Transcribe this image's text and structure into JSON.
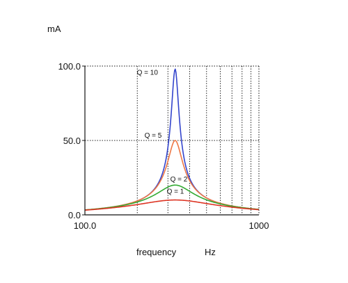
{
  "chart_data": {
    "type": "line",
    "title": "",
    "xlabel": "frequency",
    "xunit": "Hz",
    "ylabel": "mA",
    "x_scale": "log",
    "xlim": [
      100,
      1000
    ],
    "ylim": [
      0,
      100
    ],
    "x_tick_labels": [
      {
        "value": 100,
        "label": "100.0"
      },
      {
        "value": 1000,
        "label": "1000"
      }
    ],
    "y_tick_labels": [
      {
        "value": 0,
        "label": "0.0"
      },
      {
        "value": 50,
        "label": "50.0"
      },
      {
        "value": 100,
        "label": "100.0"
      }
    ],
    "x_gridlines": [
      200,
      300,
      400,
      500,
      600,
      700,
      800,
      900
    ],
    "y_gridlines": [
      50,
      100
    ],
    "grid": "dotted",
    "resonant_frequency": 330,
    "series": [
      {
        "name": "Q = 10",
        "Q": 10,
        "peak": 98,
        "color": "#3344cc"
      },
      {
        "name": "Q = 5",
        "Q": 5,
        "peak": 50,
        "color": "#ee7744"
      },
      {
        "name": "Q = 2",
        "Q": 2,
        "peak": 20,
        "color": "#33aa33"
      },
      {
        "name": "Q = 1",
        "Q": 1,
        "peak": 10,
        "color": "#dd3322"
      }
    ]
  }
}
